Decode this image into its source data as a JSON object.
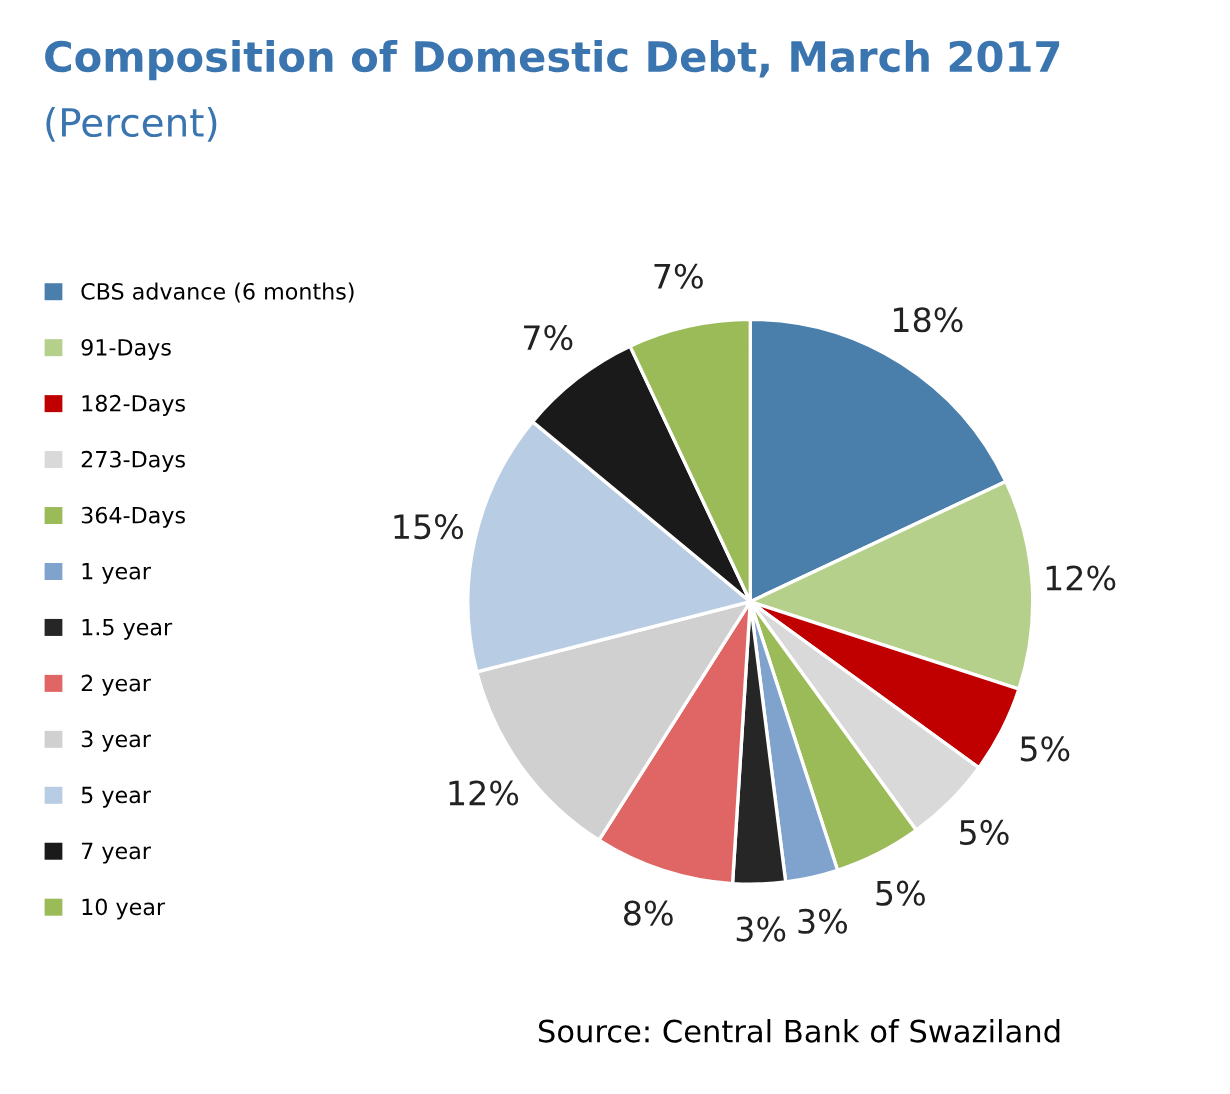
{
  "chart_data": {
    "type": "pie",
    "title": "Composition of Domestic Debt, March 2017",
    "subtitle": "(Percent)",
    "categories": [
      "CBS advance (6 months)",
      "91-Days",
      "182-Days",
      "273-Days",
      "364-Days",
      "1 year",
      "1.5 year",
      "2 year",
      "3 year",
      "5 year",
      "7 year",
      "10 year"
    ],
    "values": [
      18,
      12,
      5,
      5,
      5,
      3,
      3,
      8,
      12,
      15,
      7,
      7
    ],
    "colors": [
      "#4a7eab",
      "#b5d08a",
      "#c00000",
      "#d9d9d9",
      "#9bbb59",
      "#7fa3cc",
      "#262626",
      "#e06666",
      "#d0d0d0",
      "#b8cce4",
      "#1a1a1a",
      "#9bbb59"
    ],
    "value_labels": [
      "18%",
      "12%",
      "5%",
      "5%",
      "5%",
      "3%",
      "3%",
      "8%",
      "12%",
      "15%",
      "7%",
      "7%"
    ],
    "legend": "left",
    "annotations": [
      "Source: Central Bank of Swaziland"
    ]
  }
}
